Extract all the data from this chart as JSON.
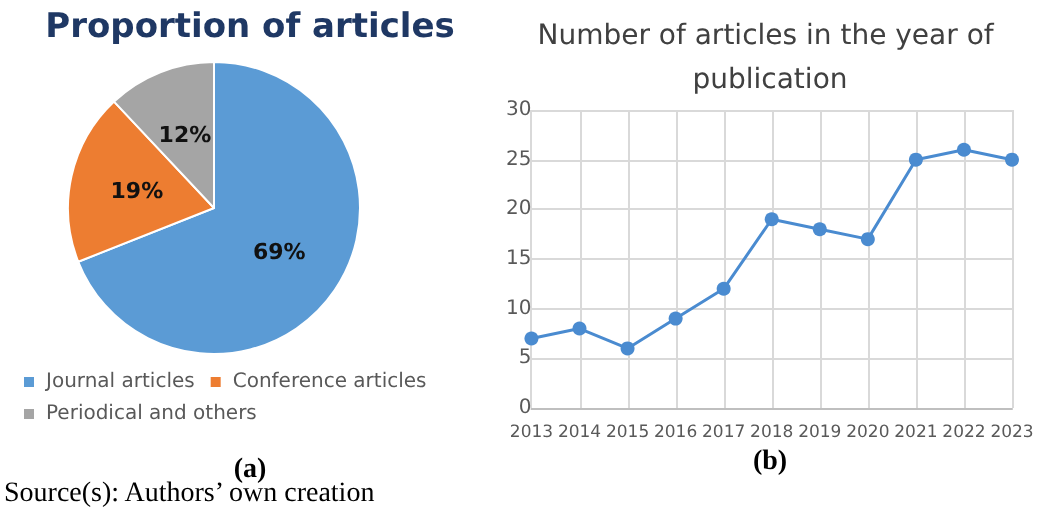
{
  "chart_data": [
    {
      "type": "pie",
      "title": "Proportion of articles",
      "categories": [
        "Journal articles",
        "Conference articles",
        "Periodical and others"
      ],
      "values": [
        69,
        19,
        12
      ],
      "colors": [
        "#5b9bd5",
        "#ed7d31",
        "#a5a5a5"
      ],
      "value_labels": [
        "69%",
        "19%",
        "12%"
      ],
      "legend": "bottom",
      "annotations": [
        "(a)",
        "Source(s): Authors’ own creation"
      ]
    },
    {
      "type": "line",
      "title": "Number of articles in the year of publication",
      "categories": [
        "2013",
        "2014",
        "2015",
        "2016",
        "2017",
        "2018",
        "2019",
        "2020",
        "2021",
        "2022",
        "2023"
      ],
      "series": [
        {
          "color": "#4a8bd0",
          "values": [
            7,
            8,
            6,
            9,
            12,
            19,
            18,
            17,
            25,
            26,
            25
          ]
        }
      ],
      "ylim": [
        0,
        30
      ],
      "yticks": [
        0,
        5,
        10,
        15,
        20,
        25,
        30
      ],
      "grid": true,
      "marker": "circle",
      "annotations": [
        "(b)"
      ]
    }
  ]
}
